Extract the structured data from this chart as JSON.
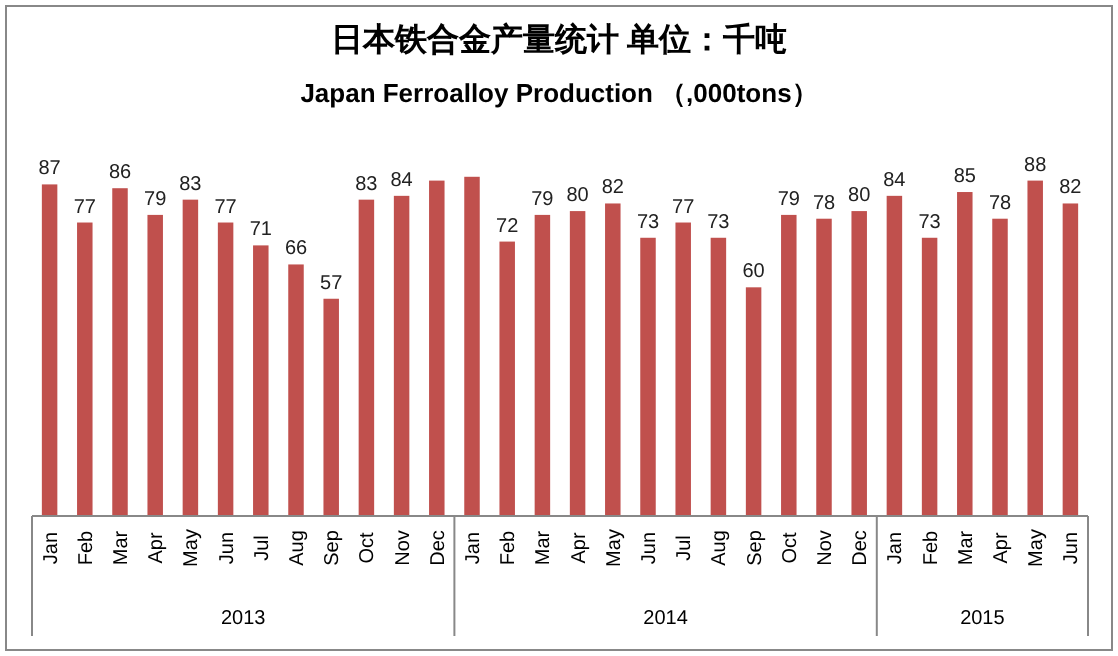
{
  "chart_data": {
    "type": "bar",
    "title": "日本铁合金产量统计 单位：千吨",
    "subtitle": "Japan Ferroalloy Production （,000tons）",
    "categories": [
      "Jan",
      "Feb",
      "Mar",
      "Apr",
      "May",
      "Jun",
      "Jul",
      "Aug",
      "Sep",
      "Oct",
      "Nov",
      "Dec",
      "Jan",
      "Feb",
      "Mar",
      "Apr",
      "May",
      "Jun",
      "Jul",
      "Aug",
      "Sep",
      "Oct",
      "Nov",
      "Dec",
      "Jan",
      "Feb",
      "Mar",
      "Apr",
      "May",
      "Jun"
    ],
    "annotations": [
      "2013",
      "2014",
      "2015"
    ],
    "values": [
      87,
      77,
      86,
      79,
      83,
      77,
      71,
      66,
      57,
      83,
      84,
      88,
      89,
      72,
      79,
      80,
      82,
      73,
      77,
      73,
      60,
      79,
      78,
      80,
      84,
      73,
      85,
      78,
      88,
      82
    ],
    "value_labels": [
      "87",
      "77",
      "86",
      "79",
      "83",
      "77",
      "71",
      "66",
      "57",
      "83",
      "84",
      null,
      null,
      "72",
      "79",
      "80",
      "82",
      "73",
      "77",
      "73",
      "60",
      "79",
      "78",
      "80",
      "84",
      "73",
      "85",
      "78",
      "88",
      "82"
    ],
    "color": "#c0504d"
  }
}
